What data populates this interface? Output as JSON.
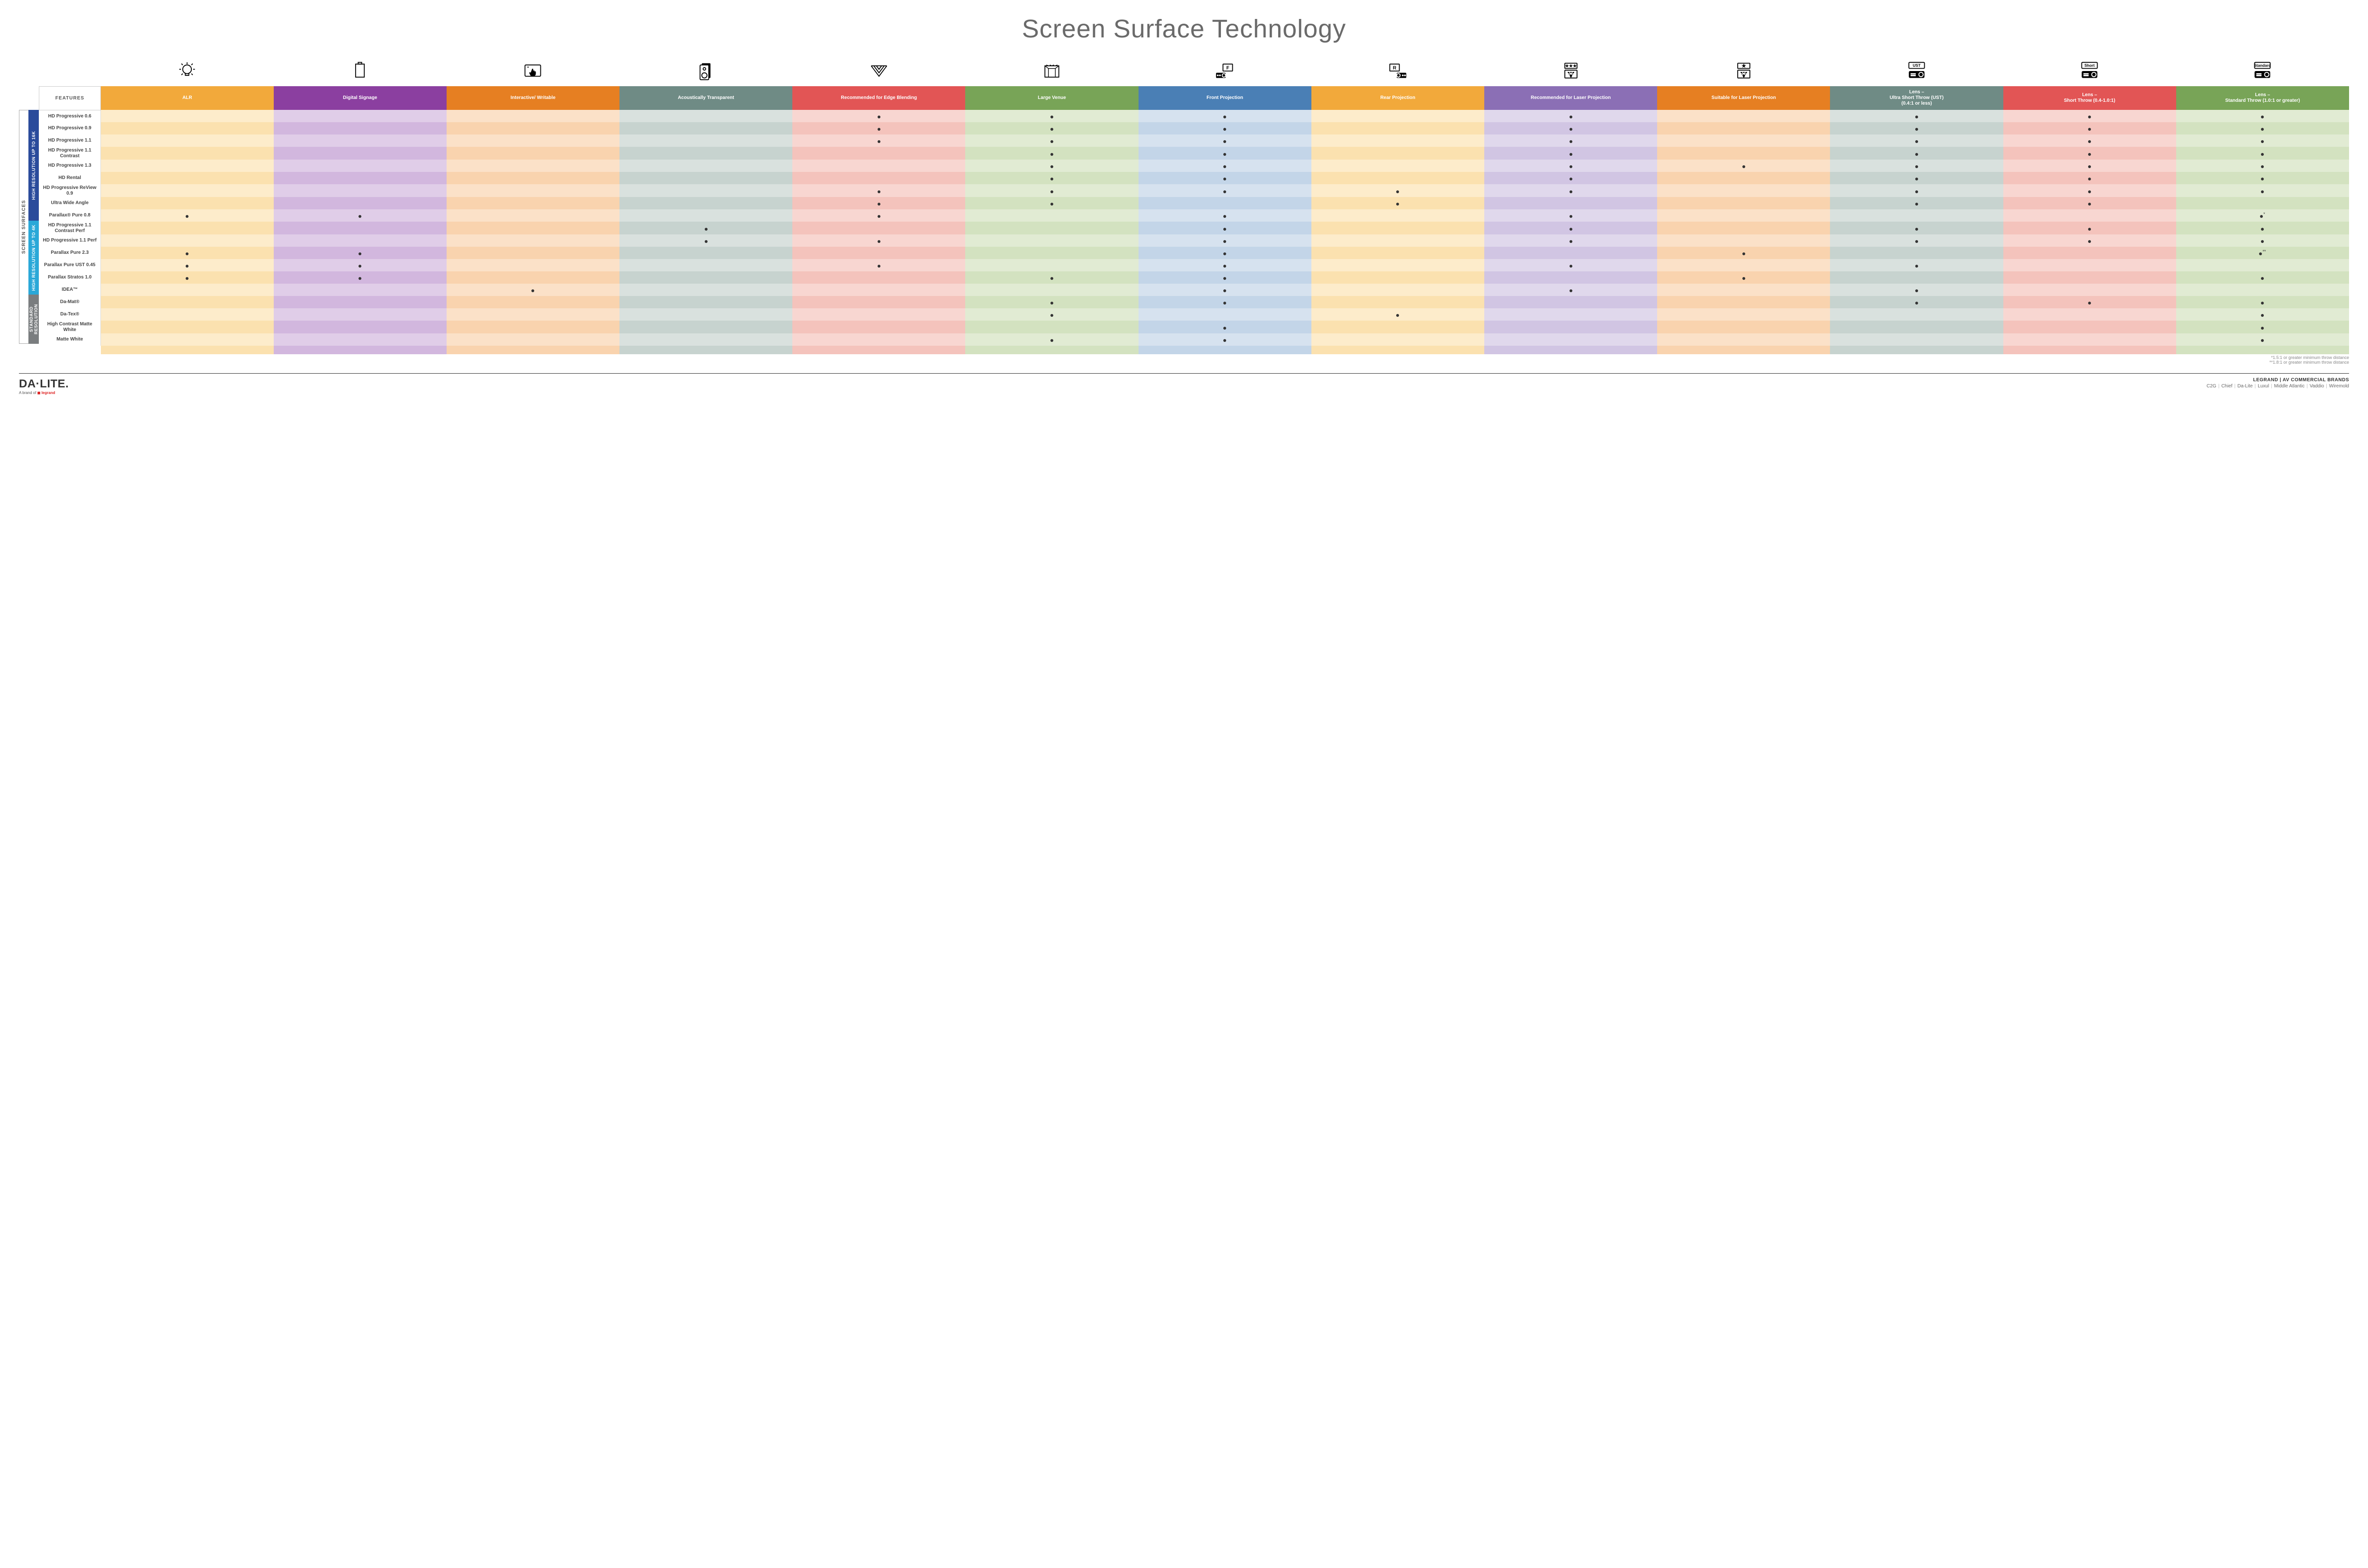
{
  "title": "Screen Surface Technology",
  "featuresLabel": "FEATURES",
  "outerSideLabel": "SCREEN SURFACES",
  "columns": [
    {
      "key": "alr",
      "label": "ALR",
      "color": "#f2a93b",
      "icon": "bulb"
    },
    {
      "key": "signage",
      "label": "Digital Signage",
      "color": "#8b3fa0",
      "icon": "signage"
    },
    {
      "key": "interactive",
      "label": "Interactive/ Writable",
      "color": "#e67f22",
      "icon": "touch"
    },
    {
      "key": "acoustic",
      "label": "Acoustically Transparent",
      "color": "#6f8b85",
      "icon": "speaker"
    },
    {
      "key": "edge",
      "label": "Recommended for Edge Blending",
      "color": "#e25555",
      "icon": "edge"
    },
    {
      "key": "large",
      "label": "Large Venue",
      "color": "#78a457",
      "icon": "venue"
    },
    {
      "key": "front",
      "label": "Front Projection",
      "color": "#4a7fb5",
      "icon": "front"
    },
    {
      "key": "rear",
      "label": "Rear Projection",
      "color": "#f2a93b",
      "icon": "rear"
    },
    {
      "key": "reclaser",
      "label": "Recommended for Laser Projection",
      "color": "#8b6fb5",
      "icon": "laser3"
    },
    {
      "key": "suitlaser",
      "label": "Suitable for Laser Projection",
      "color": "#e67f22",
      "icon": "laser1"
    },
    {
      "key": "ust",
      "label": "Lens – Ultra Short Throw (UST) (0.4:1 or less)",
      "color": "#6f8b85",
      "icon": "projUST"
    },
    {
      "key": "short",
      "label": "Lens – Short Throw (0.4-1.0:1)",
      "color": "#e25555",
      "icon": "projShort"
    },
    {
      "key": "std",
      "label": "Lens – Standard Throw (1.0:1 or greater)",
      "color": "#78a457",
      "icon": "projStd"
    }
  ],
  "tints": {
    "alr": [
      "#fdeccb",
      "#fbe1af"
    ],
    "signage": [
      "#e0cde8",
      "#d2b7de"
    ],
    "interactive": [
      "#fbe1c8",
      "#f9d3ae"
    ],
    "acoustic": [
      "#d9e1de",
      "#c7d3cf"
    ],
    "edge": [
      "#f8d6d1",
      "#f4c3bc"
    ],
    "large": [
      "#e1ebd3",
      "#d3e2c0"
    ],
    "front": [
      "#d6e2ef",
      "#c3d5e8"
    ],
    "rear": [
      "#fdeccb",
      "#fbe1af"
    ],
    "reclaser": [
      "#e0d8ec",
      "#d1c5e3"
    ],
    "suitlaser": [
      "#fbe1c8",
      "#f9d3ae"
    ],
    "ust": [
      "#d9e1de",
      "#c7d3cf"
    ],
    "short": [
      "#f8d6d1",
      "#f4c3bc"
    ],
    "std": [
      "#e1ebd3",
      "#d3e2c0"
    ]
  },
  "categories": [
    {
      "label": "HIGH RESOLUTION UP TO 16K",
      "color": "#2a4b9b",
      "rows": [
        {
          "name": "HD Progressive 0.6",
          "dots": {
            "edge": "",
            "large": "",
            "front": "",
            "reclaser": "",
            "ust": "",
            "short": "",
            "std": ""
          }
        },
        {
          "name": "HD Progressive 0.9",
          "dots": {
            "edge": "",
            "large": "",
            "front": "",
            "reclaser": "",
            "ust": "",
            "short": "",
            "std": ""
          }
        },
        {
          "name": "HD Progressive 1.1",
          "dots": {
            "edge": "",
            "large": "",
            "front": "",
            "reclaser": "",
            "ust": "",
            "short": "",
            "std": ""
          }
        },
        {
          "name": "HD Progressive 1.1 Contrast",
          "dots": {
            "large": "",
            "front": "",
            "reclaser": "",
            "ust": "",
            "short": "",
            "std": ""
          }
        },
        {
          "name": "HD Progressive 1.3",
          "dots": {
            "large": "",
            "front": "",
            "reclaser": "",
            "suitlaser": "",
            "ust": "",
            "short": "",
            "std": ""
          }
        },
        {
          "name": "HD Rental",
          "dots": {
            "large": "",
            "front": "",
            "reclaser": "",
            "ust": "",
            "short": "",
            "std": ""
          }
        },
        {
          "name": "HD Progressive ReView 0.9",
          "dots": {
            "edge": "",
            "large": "",
            "front": "",
            "rear": "",
            "reclaser": "",
            "ust": "",
            "short": "",
            "std": ""
          }
        },
        {
          "name": "Ultra Wide Angle",
          "dots": {
            "edge": "",
            "large": "",
            "rear": "",
            "ust": "",
            "short": ""
          }
        },
        {
          "name": "Parallax® Pure 0.8",
          "dots": {
            "alr": "",
            "signage": "",
            "edge": "",
            "front": "",
            "reclaser": "",
            "std": "*"
          }
        }
      ]
    },
    {
      "label": "HIGH RESOLUTION UP TO 4K",
      "color": "#2aa8d8",
      "rows": [
        {
          "name": "HD Progressive 1.1 Contrast Perf",
          "dots": {
            "acoustic": "",
            "front": "",
            "reclaser": "",
            "ust": "",
            "short": "",
            "std": ""
          }
        },
        {
          "name": "HD Progressive 1.1 Perf",
          "dots": {
            "acoustic": "",
            "edge": "",
            "front": "",
            "reclaser": "",
            "ust": "",
            "short": "",
            "std": ""
          }
        },
        {
          "name": "Parallax Pure 2.3",
          "dots": {
            "alr": "",
            "signage": "",
            "front": "",
            "suitlaser": "",
            "std": "**"
          }
        },
        {
          "name": "Parallax Pure UST 0.45",
          "dots": {
            "alr": "",
            "signage": "",
            "edge": "",
            "front": "",
            "reclaser": "",
            "ust": ""
          }
        },
        {
          "name": "Parallax Stratos 1.0",
          "dots": {
            "alr": "",
            "signage": "",
            "large": "",
            "front": "",
            "suitlaser": "",
            "std": ""
          }
        },
        {
          "name": "IDEA™",
          "dots": {
            "interactive": "",
            "front": "",
            "reclaser": "",
            "ust": ""
          }
        }
      ]
    },
    {
      "label": "STANDARD RESOLUTION",
      "color": "#7a7d7f",
      "rows": [
        {
          "name": "Da-Mat®",
          "dots": {
            "large": "",
            "front": "",
            "ust": "",
            "short": "",
            "std": ""
          }
        },
        {
          "name": "Da-Tex®",
          "dots": {
            "large": "",
            "rear": "",
            "std": ""
          }
        },
        {
          "name": "High Contrast Matte White",
          "dots": {
            "front": "",
            "std": ""
          }
        },
        {
          "name": "Matte White",
          "dots": {
            "large": "",
            "front": "",
            "std": ""
          }
        }
      ]
    }
  ],
  "footnotes": [
    "*1.5:1 or greater minimum throw distance",
    "**1.8:1 or greater minimum throw distance"
  ],
  "footer": {
    "logo": "DA·LITE.",
    "sublogo_pre": "A brand of ",
    "sublogo_brand": "legrand",
    "brandsTitle": "LEGRAND | AV COMMERCIAL BRANDS",
    "brands": [
      "C2G",
      "Chief",
      "Da-Lite",
      "Luxul",
      "Middle Atlantic",
      "Vaddio",
      "Wiremold"
    ]
  }
}
